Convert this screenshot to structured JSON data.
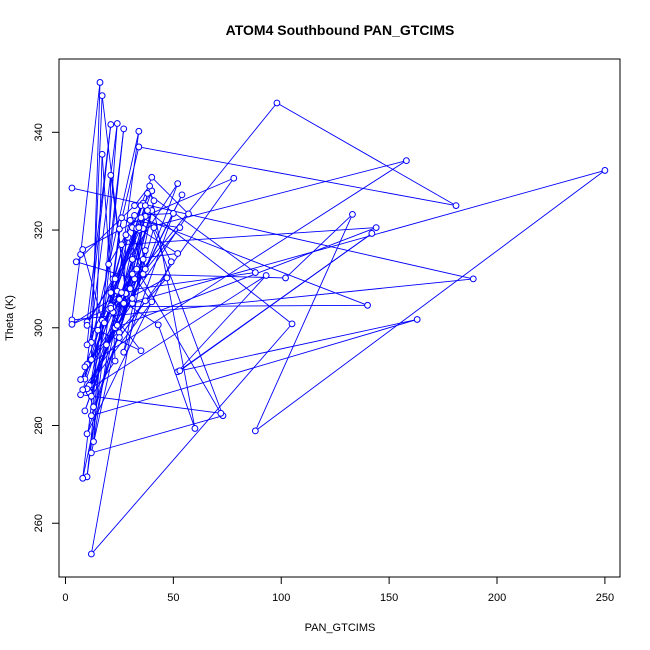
{
  "chart_data": {
    "type": "line",
    "title": "ATOM4 Southbound PAN_GTCIMS",
    "xlabel": "PAN_GTCIMS",
    "ylabel": "Theta (K)",
    "xlim": [
      -3,
      257
    ],
    "ylim": [
      249,
      355
    ],
    "xticks": [
      0,
      50,
      100,
      150,
      200,
      250
    ],
    "yticks": [
      260,
      280,
      300,
      320,
      340
    ],
    "grid": false,
    "legend": "none",
    "series_color": "#0000ff",
    "marker": "open-circle",
    "series": [
      {
        "values": [
          [
            3,
            328.6
          ],
          [
            189,
            310.0
          ],
          [
            3,
            301.6
          ],
          [
            7,
            315.0
          ],
          [
            16,
            350.2
          ],
          [
            12,
            293.5
          ],
          [
            40,
            328.0
          ],
          [
            20,
            313.0
          ],
          [
            21,
            331.2
          ],
          [
            28,
            307.0
          ],
          [
            17,
            347.5
          ],
          [
            12,
            297.0
          ],
          [
            34,
            340.2
          ],
          [
            24,
            307.5
          ],
          [
            13,
            276.7
          ],
          [
            24,
            341.8
          ],
          [
            9,
            289.5
          ],
          [
            30,
            322.0
          ],
          [
            53,
            320.5
          ],
          [
            30,
            308.0
          ],
          [
            41,
            326.0
          ],
          [
            25,
            299.0
          ],
          [
            37,
            322.8
          ],
          [
            8,
            316.0
          ],
          [
            17,
            301.5
          ],
          [
            11,
            287.0
          ],
          [
            29,
            318.5
          ],
          [
            36,
            310.8
          ],
          [
            52,
            329.5
          ],
          [
            10,
            301.2
          ],
          [
            21,
            341.6
          ],
          [
            10,
            296.5
          ],
          [
            35,
            320.5
          ],
          [
            12,
            274.4
          ],
          [
            73,
            282.0
          ],
          [
            36,
            325.5
          ],
          [
            18,
            301.0
          ],
          [
            32,
            311.5
          ],
          [
            11,
            286.8
          ],
          [
            31,
            314.0
          ],
          [
            52,
            315.2
          ],
          [
            26,
            322.5
          ],
          [
            10,
            269.5
          ],
          [
            27,
            340.7
          ],
          [
            8,
            269.2
          ],
          [
            35,
            325.0
          ],
          [
            105,
            300.8
          ],
          [
            12,
            253.7
          ],
          [
            37,
            315.8
          ],
          [
            10,
            278.3
          ],
          [
            49,
            313.5
          ],
          [
            41,
            320.5
          ],
          [
            31,
            305.0
          ],
          [
            7,
            289.4
          ],
          [
            25,
            305.8
          ],
          [
            43,
            300.6
          ],
          [
            60,
            279.4
          ],
          [
            39,
            329.0
          ],
          [
            32,
            325.0
          ],
          [
            5,
            313.5
          ],
          [
            32,
            310.0
          ],
          [
            98,
            346.0
          ],
          [
            181,
            325.0
          ],
          [
            34,
            337.0
          ],
          [
            25,
            320.2
          ],
          [
            20,
            303.8
          ],
          [
            35,
            295.3
          ],
          [
            10,
            300.5
          ],
          [
            22,
            310.0
          ],
          [
            23,
            300.0
          ],
          [
            144,
            320.5
          ],
          [
            26,
            317.0
          ],
          [
            34,
            320.0
          ],
          [
            38,
            327.5
          ],
          [
            88,
            311.3
          ],
          [
            21,
            307.2
          ],
          [
            28,
            319.0
          ],
          [
            27,
            305.0
          ],
          [
            9,
            283.0
          ],
          [
            31,
            311.0
          ],
          [
            40,
            305.3
          ],
          [
            11,
            288.2
          ],
          [
            54,
            327.2
          ],
          [
            24,
            300.5
          ],
          [
            10,
            292.5
          ],
          [
            57,
            323.3
          ],
          [
            40,
            330.8
          ],
          [
            31,
            320.5
          ],
          [
            36,
            311.0
          ],
          [
            10,
            287.5
          ],
          [
            13,
            283.8
          ],
          [
            17,
            335.5
          ],
          [
            22,
            303.2
          ],
          [
            23,
            293.2
          ],
          [
            12,
            286.0
          ],
          [
            40,
            324.0
          ],
          [
            27,
            295.0
          ],
          [
            50,
            323.4
          ],
          [
            32,
            323.0
          ],
          [
            140,
            304.6
          ],
          [
            22,
            304.3
          ],
          [
            47,
            310.2
          ],
          [
            19,
            296.5
          ],
          [
            36,
            320.3
          ],
          [
            158,
            334.2
          ],
          [
            9,
            292.0
          ],
          [
            37,
            325.0
          ],
          [
            31,
            306.0
          ],
          [
            3,
            300.7
          ],
          [
            26,
            307.2
          ],
          [
            38,
            324.0
          ],
          [
            23,
            310.0
          ],
          [
            35,
            322.5
          ],
          [
            78,
            330.6
          ],
          [
            25,
            298.0
          ],
          [
            33,
            320.3
          ],
          [
            8,
            287.3
          ],
          [
            37,
            305.5
          ],
          [
            21,
            304.5
          ],
          [
            33,
            312.0
          ],
          [
            72,
            282.5
          ],
          [
            7,
            286.3
          ],
          [
            93,
            310.7
          ],
          [
            52,
            291.0
          ],
          [
            142,
            319.3
          ],
          [
            53,
            291.2
          ],
          [
            163,
            301.7
          ],
          [
            12,
            282.0
          ],
          [
            36,
            314.0
          ],
          [
            15,
            299.5
          ],
          [
            31,
            311.0
          ],
          [
            102,
            310.2
          ],
          [
            133,
            323.2
          ],
          [
            88,
            278.9
          ],
          [
            250,
            332.2
          ],
          [
            21,
            304.0
          ],
          [
            37,
            312.0
          ],
          [
            34,
            320.5
          ]
        ]
      }
    ]
  }
}
